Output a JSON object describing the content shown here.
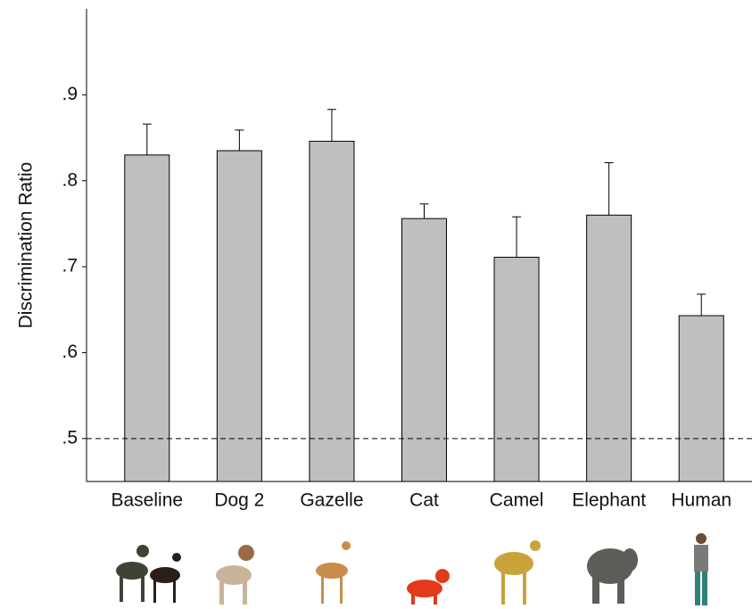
{
  "chart_data": {
    "type": "bar",
    "y_label": "Discrimination Ratio",
    "categories": [
      "Baseline",
      "Dog 2",
      "Gazelle",
      "Cat",
      "Camel",
      "Elephant",
      "Human"
    ],
    "values": [
      0.83,
      0.835,
      0.846,
      0.756,
      0.711,
      0.76,
      0.643
    ],
    "errors": [
      0.036,
      0.024,
      0.037,
      0.017,
      0.047,
      0.061,
      0.025
    ],
    "color": "#bfbfc1",
    "ylim": [
      0.45,
      1.0
    ],
    "yticks": [
      {
        "value": 0.5,
        "label": ".5"
      },
      {
        "value": 0.6,
        "label": ".6"
      },
      {
        "value": 0.7,
        "label": ".7"
      },
      {
        "value": 0.8,
        "label": ".8"
      },
      {
        "value": 0.9,
        "label": ".9"
      }
    ],
    "reference_line": 0.5,
    "grid": false
  }
}
